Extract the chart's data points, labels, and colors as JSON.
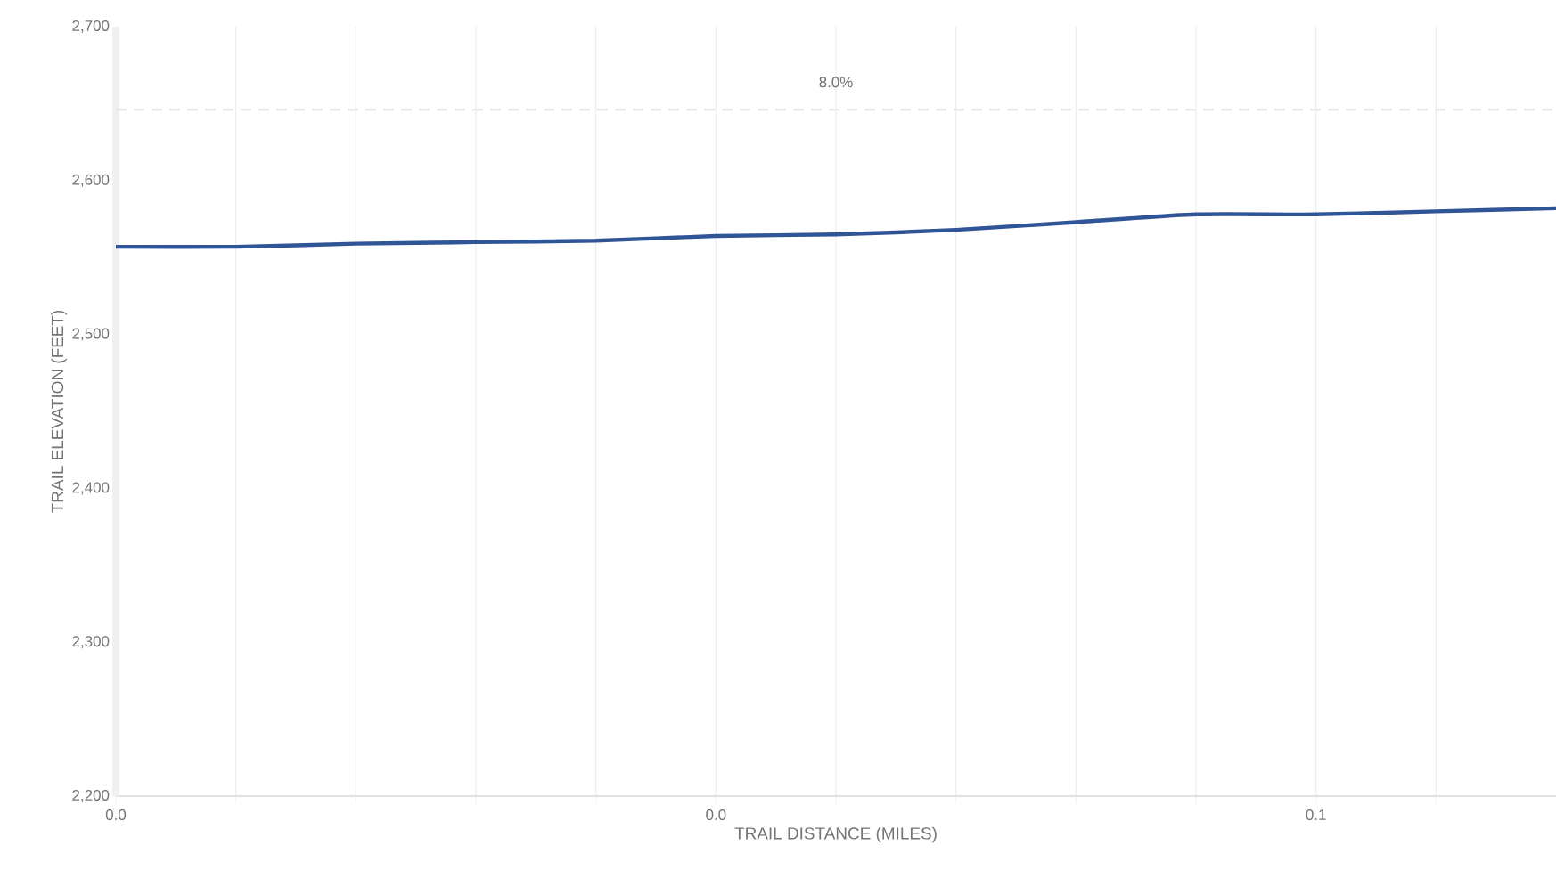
{
  "chart_data": {
    "type": "line",
    "xlabel": "TRAIL DISTANCE (MILES)",
    "ylabel": "TRAIL ELEVATION (FEET)",
    "x": [
      0,
      0.01,
      0.02,
      0.03,
      0.04,
      0.05,
      0.06,
      0.07,
      0.08,
      0.09,
      0.1,
      0.11,
      0.12
    ],
    "series": [
      {
        "color": "#2f5597",
        "values": [
          2557,
          2557,
          2559,
          2560,
          2561,
          2564,
          2565,
          2568,
          2573,
          2578,
          2578,
          2580,
          2582
        ]
      }
    ],
    "xlim": [
      0,
      0.12
    ],
    "xticks": [
      {
        "value": 0,
        "label": "0.0"
      },
      {
        "value": 0.01,
        "label": null
      },
      {
        "value": 0.02,
        "label": null
      },
      {
        "value": 0.03,
        "label": null
      },
      {
        "value": 0.04,
        "label": null
      },
      {
        "value": 0.05,
        "label": "0.0"
      },
      {
        "value": 0.06,
        "label": null
      },
      {
        "value": 0.07,
        "label": null
      },
      {
        "value": 0.08,
        "label": null
      },
      {
        "value": 0.09,
        "label": null
      },
      {
        "value": 0.1,
        "label": "0.1"
      },
      {
        "value": 0.11,
        "label": null
      }
    ],
    "ylim": [
      2200,
      2700
    ],
    "yticks": [
      {
        "value": 2200,
        "label": "2,200"
      },
      {
        "value": 2300,
        "label": "2,300"
      },
      {
        "value": 2400,
        "label": "2,400"
      },
      {
        "value": 2500,
        "label": "2,500"
      },
      {
        "value": 2600,
        "label": "2,600"
      },
      {
        "value": 2700,
        "label": "2,700"
      }
    ],
    "grid": "x",
    "line_style": "solid",
    "marker": "none",
    "ref_lines": [
      {
        "axis": "y",
        "value": 2646,
        "color": "#e6e6e6",
        "line_style": "dashed"
      }
    ],
    "annotations": [
      "8.0%"
    ]
  }
}
